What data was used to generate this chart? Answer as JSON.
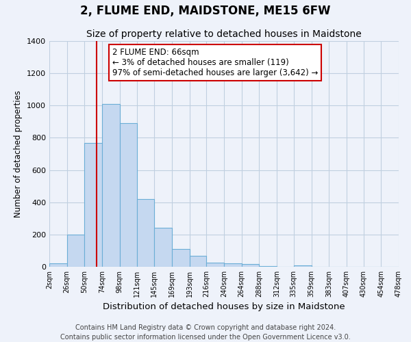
{
  "title": "2, FLUME END, MAIDSTONE, ME15 6FW",
  "subtitle": "Size of property relative to detached houses in Maidstone",
  "xlabel": "Distribution of detached houses by size in Maidstone",
  "ylabel": "Number of detached properties",
  "bin_edges": [
    2,
    26,
    50,
    74,
    98,
    121,
    145,
    169,
    193,
    216,
    240,
    264,
    288,
    312,
    335,
    359,
    383,
    407,
    430,
    454,
    478
  ],
  "bar_heights": [
    20,
    200,
    770,
    1010,
    890,
    420,
    240,
    110,
    70,
    25,
    20,
    15,
    5,
    0,
    10,
    0,
    0,
    0,
    0,
    0
  ],
  "bar_color": "#c5d8f0",
  "bar_edgecolor": "#6baed6",
  "bar_linewidth": 0.8,
  "vline_x": 66,
  "vline_color": "#cc0000",
  "vline_linewidth": 1.5,
  "annotation_line1": "2 FLUME END: 66sqm",
  "annotation_line2": "← 3% of detached houses are smaller (119)",
  "annotation_line3": "97% of semi-detached houses are larger (3,642) →",
  "annotation_box_edgecolor": "#cc0000",
  "annotation_box_facecolor": "#ffffff",
  "annotation_fontsize": 8.5,
  "ylim": [
    0,
    1400
  ],
  "yticks": [
    0,
    200,
    400,
    600,
    800,
    1000,
    1200,
    1400
  ],
  "tick_labels": [
    "2sqm",
    "26sqm",
    "50sqm",
    "74sqm",
    "98sqm",
    "121sqm",
    "145sqm",
    "169sqm",
    "193sqm",
    "216sqm",
    "240sqm",
    "264sqm",
    "288sqm",
    "312sqm",
    "335sqm",
    "359sqm",
    "383sqm",
    "407sqm",
    "430sqm",
    "454sqm",
    "478sqm"
  ],
  "footer_line1": "Contains HM Land Registry data © Crown copyright and database right 2024.",
  "footer_line2": "Contains public sector information licensed under the Open Government Licence v3.0.",
  "background_color": "#eef2fa",
  "plot_background_color": "#eef2fa",
  "grid_color": "#c0cfe0",
  "title_fontsize": 12,
  "subtitle_fontsize": 10,
  "xlabel_fontsize": 9.5,
  "ylabel_fontsize": 8.5,
  "footer_fontsize": 7
}
